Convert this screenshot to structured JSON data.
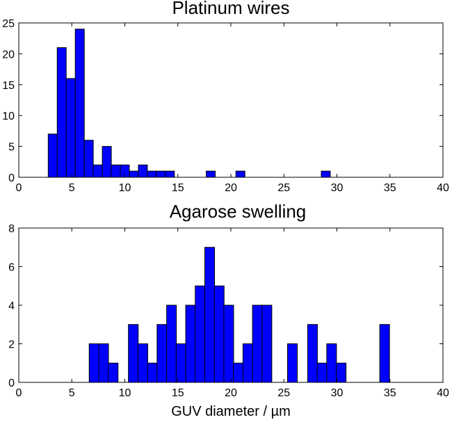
{
  "bar_color": "#0000ff",
  "chart_data": [
    {
      "type": "bar",
      "title": "Platinum wires",
      "xlabel": "",
      "ylabel": "",
      "xlim": [
        0,
        40
      ],
      "ylim": [
        0,
        25
      ],
      "xticks": [
        0,
        5,
        10,
        15,
        20,
        25,
        30,
        35,
        40
      ],
      "yticks": [
        0,
        5,
        10,
        15,
        20,
        25
      ],
      "bin_width": 0.85,
      "bins": [
        {
          "x": 3.2,
          "count": 7
        },
        {
          "x": 4.05,
          "count": 21
        },
        {
          "x": 4.9,
          "count": 16
        },
        {
          "x": 5.75,
          "count": 24
        },
        {
          "x": 6.6,
          "count": 6
        },
        {
          "x": 7.45,
          "count": 2
        },
        {
          "x": 8.3,
          "count": 5
        },
        {
          "x": 9.15,
          "count": 2
        },
        {
          "x": 10.0,
          "count": 2
        },
        {
          "x": 10.85,
          "count": 1
        },
        {
          "x": 11.7,
          "count": 2
        },
        {
          "x": 12.55,
          "count": 1
        },
        {
          "x": 13.4,
          "count": 1
        },
        {
          "x": 14.25,
          "count": 1
        },
        {
          "x": 18.1,
          "count": 1
        },
        {
          "x": 20.9,
          "count": 1
        },
        {
          "x": 28.95,
          "count": 1
        }
      ]
    },
    {
      "type": "bar",
      "title": "Agarose swelling",
      "xlabel": "GUV diameter / µm",
      "ylabel": "",
      "xlim": [
        0,
        40
      ],
      "ylim": [
        0,
        8
      ],
      "xticks": [
        0,
        5,
        10,
        15,
        20,
        25,
        30,
        35,
        40
      ],
      "yticks": [
        0,
        2,
        4,
        6,
        8
      ],
      "bin_width": 0.92,
      "bins": [
        {
          "x": 7.1,
          "count": 2
        },
        {
          "x": 8.0,
          "count": 2
        },
        {
          "x": 8.9,
          "count": 1
        },
        {
          "x": 10.8,
          "count": 3
        },
        {
          "x": 11.7,
          "count": 2
        },
        {
          "x": 12.6,
          "count": 1
        },
        {
          "x": 13.5,
          "count": 3
        },
        {
          "x": 14.4,
          "count": 4
        },
        {
          "x": 15.3,
          "count": 2
        },
        {
          "x": 16.2,
          "count": 4
        },
        {
          "x": 17.1,
          "count": 5
        },
        {
          "x": 18.0,
          "count": 7
        },
        {
          "x": 18.9,
          "count": 5
        },
        {
          "x": 19.8,
          "count": 4
        },
        {
          "x": 20.7,
          "count": 1
        },
        {
          "x": 21.6,
          "count": 2
        },
        {
          "x": 22.5,
          "count": 4
        },
        {
          "x": 23.4,
          "count": 4
        },
        {
          "x": 25.8,
          "count": 2
        },
        {
          "x": 27.7,
          "count": 3
        },
        {
          "x": 28.6,
          "count": 1
        },
        {
          "x": 29.5,
          "count": 2
        },
        {
          "x": 30.4,
          "count": 1
        },
        {
          "x": 34.5,
          "count": 3
        }
      ]
    }
  ]
}
